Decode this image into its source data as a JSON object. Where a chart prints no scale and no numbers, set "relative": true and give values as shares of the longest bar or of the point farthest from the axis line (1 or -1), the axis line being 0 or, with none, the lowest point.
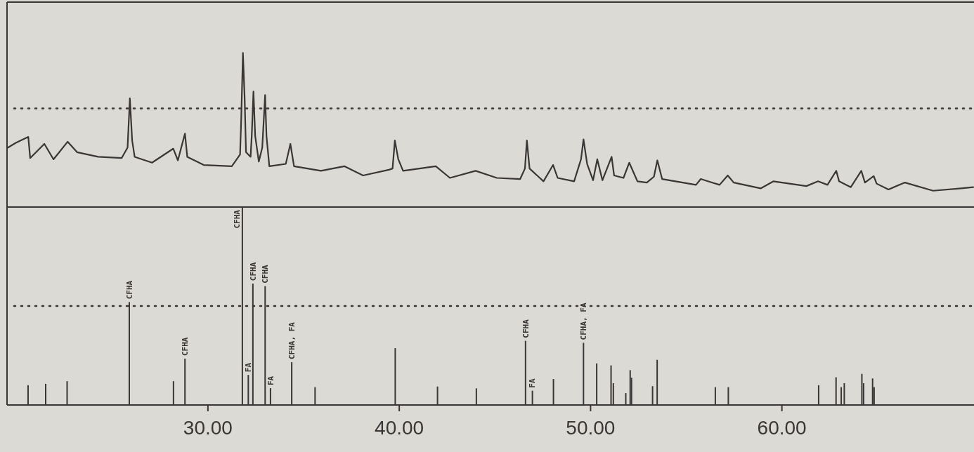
{
  "chart_data": [
    {
      "type": "line",
      "relative": true,
      "xlim": [
        19.5,
        70.04
      ],
      "line_style": "solid",
      "marker": "none",
      "x": [
        19.55,
        19.96,
        20.61,
        20.71,
        21.45,
        21.93,
        22.67,
        23.16,
        24.26,
        25.49,
        25.8,
        25.92,
        26.04,
        26.17,
        27.08,
        28.19,
        28.43,
        28.8,
        28.92,
        29.78,
        31.25,
        31.68,
        31.74,
        31.83,
        31.92,
        31.99,
        32.23,
        32.29,
        32.38,
        32.47,
        32.66,
        32.84,
        32.99,
        33.06,
        33.21,
        34.07,
        34.31,
        34.5,
        35.91,
        37.13,
        38.11,
        39.46,
        39.65,
        39.77,
        39.95,
        40.2,
        41.91,
        42.65,
        43.99,
        45.1,
        46.32,
        46.57,
        46.67,
        46.81,
        47.54,
        48.04,
        48.28,
        49.14,
        49.5,
        49.63,
        49.82,
        50.13,
        50.35,
        50.62,
        51.1,
        51.23,
        51.72,
        52.02,
        52.45,
        52.94,
        53.31,
        53.49,
        53.74,
        55.51,
        55.76,
        56.74,
        57.17,
        57.48,
        58.89,
        59.56,
        61.28,
        61.89,
        62.38,
        62.84,
        62.99,
        63.6,
        64.15,
        64.34,
        64.8,
        64.95,
        65.57,
        66.43,
        67.9,
        69.37,
        70.0
      ],
      "series": [
        {
          "color": "#3a3636",
          "values": [
            0.386,
            0.417,
            0.455,
            0.318,
            0.41,
            0.31,
            0.424,
            0.356,
            0.326,
            0.318,
            0.386,
            0.705,
            0.432,
            0.326,
            0.288,
            0.379,
            0.303,
            0.477,
            0.326,
            0.273,
            0.265,
            0.341,
            0.568,
            1.0,
            0.705,
            0.356,
            0.326,
            0.462,
            0.75,
            0.462,
            0.295,
            0.386,
            0.727,
            0.462,
            0.265,
            0.28,
            0.41,
            0.265,
            0.235,
            0.265,
            0.205,
            0.242,
            0.25,
            0.432,
            0.31,
            0.235,
            0.265,
            0.189,
            0.235,
            0.189,
            0.182,
            0.25,
            0.432,
            0.25,
            0.167,
            0.273,
            0.189,
            0.167,
            0.31,
            0.439,
            0.28,
            0.174,
            0.31,
            0.174,
            0.326,
            0.205,
            0.189,
            0.288,
            0.167,
            0.159,
            0.197,
            0.303,
            0.182,
            0.144,
            0.182,
            0.144,
            0.205,
            0.159,
            0.121,
            0.167,
            0.136,
            0.167,
            0.144,
            0.235,
            0.167,
            0.129,
            0.235,
            0.159,
            0.201,
            0.152,
            0.114,
            0.159,
            0.106,
            0.121,
            0.129
          ]
        }
      ],
      "ref_lines": [
        {
          "axis": "y",
          "value": 0.64,
          "line_style": "dotted",
          "color": "#3a3636"
        }
      ]
    },
    {
      "type": "bar",
      "relative": true,
      "xlim": [
        19.5,
        70.04
      ],
      "xticks": [
        {
          "value": 30,
          "label": "30.00"
        },
        {
          "value": 40,
          "label": "40.00"
        },
        {
          "value": 50,
          "label": "50.00"
        },
        {
          "value": 60,
          "label": "60.00"
        }
      ],
      "x": [
        20.6,
        21.52,
        22.64,
        25.89,
        28.2,
        28.8,
        31.8,
        32.11,
        32.35,
        32.99,
        33.27,
        34.38,
        35.6,
        39.79,
        42.0,
        44.03,
        46.6,
        46.96,
        48.06,
        49.63,
        50.32,
        51.07,
        51.19,
        51.84,
        52.07,
        52.14,
        53.24,
        53.48,
        56.52,
        57.2,
        61.92,
        62.83,
        63.1,
        63.26,
        64.18,
        64.27,
        64.74,
        64.82
      ],
      "series": [
        {
          "color": "#3a3636",
          "values": [
            0.1,
            0.107,
            0.12,
            0.52,
            0.12,
            0.234,
            1.0,
            0.152,
            0.613,
            0.6,
            0.085,
            0.216,
            0.09,
            0.287,
            0.093,
            0.084,
            0.324,
            0.072,
            0.131,
            0.314,
            0.21,
            0.2,
            0.11,
            0.06,
            0.176,
            0.138,
            0.095,
            0.228,
            0.09,
            0.09,
            0.1,
            0.14,
            0.09,
            0.11,
            0.157,
            0.11,
            0.134,
            0.09
          ]
        }
      ],
      "ref_lines": [
        {
          "axis": "y",
          "value": 0.5,
          "line_style": "dotted",
          "color": "#3a3636"
        }
      ],
      "annotations": [
        {
          "text": "CFHA",
          "x": 25.89,
          "y": 0.52
        },
        {
          "text": "CFHA",
          "x": 28.8,
          "y": 0.234
        },
        {
          "text": "CFHA",
          "x": 31.8,
          "y": 1.0
        },
        {
          "text": "FA",
          "x": 32.11,
          "y": 0.152
        },
        {
          "text": "CFHA",
          "x": 32.35,
          "y": 0.613
        },
        {
          "text": "CFHA",
          "x": 32.99,
          "y": 0.6
        },
        {
          "text": "FA",
          "x": 33.27,
          "y": 0.085
        },
        {
          "text": "CFHA, FA",
          "x": 34.38,
          "y": 0.216
        },
        {
          "text": "CFHA",
          "x": 46.6,
          "y": 0.324
        },
        {
          "text": "FA",
          "x": 46.96,
          "y": 0.072
        },
        {
          "text": "CFHA, FA",
          "x": 49.63,
          "y": 0.314
        }
      ]
    }
  ]
}
